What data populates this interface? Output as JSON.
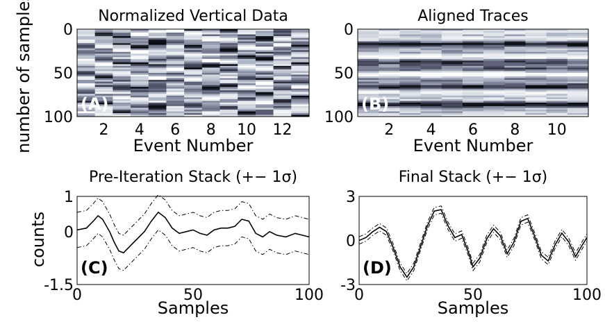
{
  "chart_data": [
    {
      "type": "heatmap",
      "panel_label": "(A)",
      "title": "Normalized Vertical Data",
      "xlabel": "Event Number",
      "ylabel": "number of samples",
      "xticks": [
        2,
        4,
        6,
        8,
        10,
        12
      ],
      "yticks": [
        0,
        50,
        100
      ],
      "n_columns": 13,
      "ylim": [
        0,
        100
      ],
      "colormap": [
        "#0b0d14",
        "#5c5f76",
        "#a3aabb",
        "#dfe4ea",
        "#ffffff"
      ]
    },
    {
      "type": "heatmap",
      "panel_label": "(B)",
      "title": "Aligned Traces",
      "xlabel": "Event Number",
      "ylabel": "",
      "xticks": [
        2,
        4,
        6,
        8,
        10
      ],
      "yticks": [
        0,
        50,
        100
      ],
      "n_columns": 11,
      "ylim": [
        0,
        100
      ],
      "colormap": [
        "#0b0d14",
        "#5c5f76",
        "#a3aabb",
        "#dfe4ea",
        "#ffffff"
      ]
    },
    {
      "type": "line",
      "panel_label": "(C)",
      "title": "Pre-Iteration Stack (+− 1σ)",
      "xlabel": "Samples",
      "ylabel": "counts",
      "xticks": [
        0,
        50,
        100
      ],
      "yticks": [
        -1.5,
        0,
        1
      ],
      "xlim": [
        0,
        100
      ],
      "ylim": [
        -1.5,
        1
      ],
      "band": 0.5,
      "x": [
        0,
        4,
        7,
        9,
        11,
        14,
        16,
        18,
        20,
        23,
        26,
        29,
        32,
        35,
        38,
        41,
        44,
        47,
        50,
        53,
        56,
        59,
        62,
        65,
        68,
        71,
        74,
        77,
        80,
        83,
        86,
        90,
        94,
        97,
        100
      ],
      "series": [
        {
          "values": [
            0.05,
            0.1,
            0.3,
            0.45,
            0.35,
            0.0,
            -0.3,
            -0.55,
            -0.6,
            -0.4,
            -0.2,
            0.0,
            0.3,
            0.55,
            0.4,
            0.1,
            -0.05,
            0.0,
            0.05,
            -0.05,
            -0.1,
            0.05,
            0.1,
            0.1,
            0.15,
            0.35,
            0.3,
            -0.05,
            -0.15,
            0.0,
            -0.1,
            -0.15,
            -0.05,
            -0.1,
            -0.15
          ]
        }
      ]
    },
    {
      "type": "line",
      "panel_label": "(D)",
      "title": "Final Stack (+− 1σ)",
      "xlabel": "Samples",
      "ylabel": "",
      "xticks": [
        0,
        50,
        100
      ],
      "yticks": [
        -3,
        0,
        3
      ],
      "xlim": [
        0,
        100
      ],
      "ylim": [
        -3,
        3
      ],
      "band": 0.25,
      "x": [
        0,
        3,
        6,
        9,
        12,
        15,
        18,
        21,
        24,
        27,
        30,
        33,
        36,
        39,
        42,
        45,
        48,
        50,
        53,
        56,
        59,
        62,
        65,
        68,
        71,
        74,
        77,
        80,
        83,
        86,
        89,
        92,
        95,
        98,
        100
      ],
      "series": [
        {
          "values": [
            0.0,
            0.2,
            0.6,
            0.9,
            0.6,
            -0.5,
            -1.8,
            -2.5,
            -1.8,
            -0.4,
            1.0,
            2.0,
            2.1,
            1.0,
            0.2,
            0.4,
            -0.8,
            -1.8,
            -1.2,
            0.1,
            0.8,
            0.3,
            -0.9,
            -0.1,
            1.3,
            1.5,
            0.3,
            -1.0,
            -1.4,
            -0.3,
            0.5,
            -0.1,
            -1.1,
            -0.3,
            0.2
          ]
        }
      ]
    }
  ]
}
